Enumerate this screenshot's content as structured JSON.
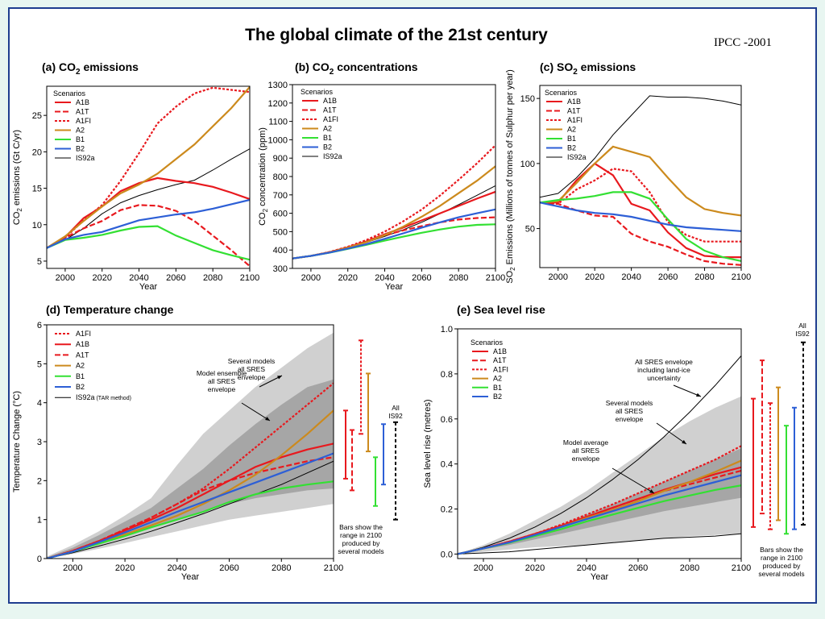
{
  "page": {
    "title": "The global climate of the 21st century",
    "source": "IPCC -2001"
  },
  "colors": {
    "A1B": "#e8191e",
    "A1T": "#e8191e",
    "A1FI": "#e8191e",
    "A2": "#cc8a1d",
    "B1": "#33e033",
    "B2": "#2d5fd6",
    "IS92a": "#000000",
    "env_light": "#d0d0d0",
    "env_dark": "#a6a6a6",
    "frame": "#1f3d8f",
    "background": "#e8f6f1"
  },
  "chart_data": [
    {
      "id": "co2e",
      "type": "line",
      "title_main": "(a) CO",
      "title_sub": "2",
      "title_rest": " emissions",
      "xlabel": "Year",
      "ylabel_main": "CO",
      "ylabel_sub": "2",
      "ylabel_rest": " emissions (Gt C/yr)",
      "xlim": [
        1990,
        2100
      ],
      "ylim": [
        4,
        29
      ],
      "xticks": [
        2000,
        2020,
        2040,
        2060,
        2080,
        2100
      ],
      "yticks": [
        5,
        10,
        15,
        20,
        25
      ],
      "legend_title": "Scenarios",
      "legend": [
        "A1B",
        "A1T",
        "A1FI",
        "A2",
        "B1",
        "B2",
        "IS92a"
      ],
      "x": [
        1990,
        2000,
        2010,
        2020,
        2030,
        2040,
        2050,
        2060,
        2070,
        2080,
        2090,
        2100
      ],
      "series": [
        {
          "name": "A1B",
          "values": [
            6.8,
            8.3,
            10.9,
            12.5,
            14.6,
            15.7,
            16.4,
            16.0,
            15.7,
            15.2,
            14.4,
            13.5
          ]
        },
        {
          "name": "A1T",
          "values": [
            6.8,
            8.2,
            9.5,
            10.5,
            12.0,
            12.7,
            12.6,
            11.9,
            10.5,
            8.5,
            6.5,
            4.3
          ]
        },
        {
          "name": "A1FI",
          "values": [
            6.8,
            8.2,
            10.6,
            12.7,
            16.0,
            19.8,
            23.9,
            26.2,
            28.0,
            28.8,
            28.5,
            28.2
          ]
        },
        {
          "name": "A2",
          "values": [
            6.8,
            8.4,
            10.5,
            12.5,
            14.3,
            15.5,
            17.0,
            19.0,
            21.0,
            23.5,
            26.0,
            28.9
          ]
        },
        {
          "name": "B1",
          "values": [
            6.8,
            7.9,
            8.2,
            8.6,
            9.2,
            9.7,
            9.8,
            8.5,
            7.5,
            6.5,
            5.8,
            5.2
          ]
        },
        {
          "name": "B2",
          "values": [
            6.8,
            8.0,
            8.6,
            9.0,
            9.8,
            10.6,
            11.0,
            11.4,
            11.7,
            12.2,
            12.8,
            13.4
          ]
        },
        {
          "name": "IS92a",
          "values": [
            6.8,
            7.9,
            9.5,
            11.5,
            13.0,
            14.0,
            14.8,
            15.5,
            16.1,
            17.5,
            19.0,
            20.4
          ]
        }
      ]
    },
    {
      "id": "co2c",
      "type": "line",
      "title_main": "(b) CO",
      "title_sub": "2",
      "title_rest": " concentrations",
      "xlabel": "Year",
      "ylabel_main": "CO",
      "ylabel_sub": "2",
      "ylabel_rest": " concentration (ppm)",
      "xlim": [
        1990,
        2100
      ],
      "ylim": [
        300,
        1300
      ],
      "xticks": [
        2000,
        2020,
        2040,
        2060,
        2080,
        2100
      ],
      "yticks": [
        300,
        400,
        500,
        600,
        700,
        800,
        900,
        1000,
        1100,
        1200,
        1300
      ],
      "legend_title": "Scenarios",
      "legend": [
        "A1B",
        "A1T",
        "A1FI",
        "A2",
        "B1",
        "B2",
        "IS92a"
      ],
      "x": [
        1990,
        2000,
        2010,
        2020,
        2030,
        2040,
        2050,
        2060,
        2070,
        2080,
        2090,
        2100
      ],
      "series": [
        {
          "name": "A1B",
          "values": [
            354,
            368,
            388,
            415,
            447,
            486,
            522,
            561,
            600,
            640,
            680,
            717
          ]
        },
        {
          "name": "A1T",
          "values": [
            354,
            368,
            388,
            414,
            444,
            480,
            507,
            530,
            551,
            566,
            574,
            578
          ]
        },
        {
          "name": "A1FI",
          "values": [
            354,
            368,
            389,
            418,
            454,
            500,
            556,
            620,
            697,
            782,
            872,
            970
          ]
        },
        {
          "name": "A2",
          "values": [
            354,
            368,
            387,
            413,
            443,
            481,
            527,
            581,
            641,
            709,
            777,
            856
          ]
        },
        {
          "name": "B1",
          "values": [
            354,
            368,
            385,
            406,
            428,
            451,
            473,
            494,
            512,
            527,
            537,
            540
          ]
        },
        {
          "name": "B2",
          "values": [
            354,
            368,
            386,
            408,
            432,
            461,
            491,
            522,
            551,
            578,
            600,
            621
          ]
        },
        {
          "name": "IS92a",
          "values": [
            354,
            368,
            387,
            412,
            441,
            474,
            510,
            551,
            598,
            647,
            698,
            750
          ]
        }
      ]
    },
    {
      "id": "so2",
      "type": "line",
      "title_main": "(c) SO",
      "title_sub": "2",
      "title_rest": " emissions",
      "xlabel": "",
      "ylabel_main": "SO",
      "ylabel_sub": "2",
      "ylabel_rest": " Emissions (Millions of tonnes of Sulphur per year)",
      "xlim": [
        1990,
        2100
      ],
      "ylim": [
        20,
        160
      ],
      "xticks": [
        2000,
        2020,
        2040,
        2060,
        2080,
        2100
      ],
      "yticks": [
        50,
        100,
        150
      ],
      "legend_title": "Scenarios",
      "legend": [
        "A1B",
        "A1T",
        "A1FI",
        "A2",
        "B1",
        "B2",
        "IS92a"
      ],
      "x": [
        1990,
        2000,
        2010,
        2020,
        2030,
        2040,
        2050,
        2060,
        2070,
        2080,
        2090,
        2100
      ],
      "series": [
        {
          "name": "A1B",
          "values": [
            70,
            70,
            87,
            100,
            91,
            69,
            64,
            47,
            35,
            29,
            28,
            28
          ]
        },
        {
          "name": "A1T",
          "values": [
            70,
            69,
            64,
            60,
            59,
            46,
            40,
            36,
            30,
            25,
            23,
            22
          ]
        },
        {
          "name": "A1FI",
          "values": [
            70,
            69,
            80,
            87,
            96,
            94,
            78,
            55,
            45,
            40,
            40,
            40
          ]
        },
        {
          "name": "A2",
          "values": [
            70,
            71,
            85,
            100,
            113,
            109,
            105,
            89,
            74,
            65,
            62,
            60
          ]
        },
        {
          "name": "B1",
          "values": [
            70,
            72,
            73,
            75,
            78,
            78,
            73,
            57,
            42,
            33,
            28,
            25
          ]
        },
        {
          "name": "B2",
          "values": [
            70,
            67,
            64,
            62,
            61,
            59,
            56,
            53,
            51,
            50,
            49,
            48
          ]
        },
        {
          "name": "IS92a",
          "values": [
            74,
            77,
            89,
            104,
            122,
            137,
            152,
            151,
            151,
            150,
            148,
            145
          ]
        }
      ]
    },
    {
      "id": "temp",
      "type": "line",
      "title": "(d) Temperature change",
      "xlabel": "Year",
      "ylabel": "Temperature Change (°C)",
      "xlim": [
        1990,
        2100
      ],
      "ylim": [
        0,
        6
      ],
      "xticks": [
        2000,
        2020,
        2040,
        2060,
        2080,
        2100
      ],
      "yticks": [
        0,
        1,
        2,
        3,
        4,
        5,
        6
      ],
      "legend": [
        "A1FI",
        "A1B",
        "A1T",
        "A2",
        "B1",
        "B2",
        "IS92a"
      ],
      "legend_suffix_last": " (TAR method)",
      "x": [
        1990,
        2000,
        2010,
        2020,
        2030,
        2040,
        2050,
        2060,
        2070,
        2080,
        2090,
        2100
      ],
      "envelope_outer": {
        "upper": [
          0.05,
          0.35,
          0.7,
          1.1,
          1.55,
          2.4,
          3.2,
          3.8,
          4.4,
          4.9,
          5.4,
          5.8
        ],
        "lower": [
          0.0,
          0.12,
          0.25,
          0.4,
          0.55,
          0.7,
          0.85,
          1.0,
          1.1,
          1.2,
          1.3,
          1.4
        ]
      },
      "envelope_inner": {
        "upper": [
          0.03,
          0.28,
          0.6,
          0.95,
          1.3,
          1.8,
          2.3,
          2.9,
          3.45,
          3.95,
          4.4,
          4.6
        ],
        "lower": [
          0.0,
          0.18,
          0.38,
          0.6,
          0.8,
          1.0,
          1.2,
          1.4,
          1.55,
          1.65,
          1.75,
          1.8
        ]
      },
      "series": [
        {
          "name": "A1FI",
          "values": [
            0.0,
            0.2,
            0.45,
            0.75,
            1.05,
            1.4,
            1.8,
            2.3,
            2.85,
            3.4,
            3.95,
            4.5
          ]
        },
        {
          "name": "A1B",
          "values": [
            0.0,
            0.2,
            0.45,
            0.72,
            1.0,
            1.3,
            1.65,
            2.0,
            2.35,
            2.6,
            2.8,
            2.95
          ]
        },
        {
          "name": "A1T",
          "values": [
            0.0,
            0.2,
            0.45,
            0.75,
            1.05,
            1.4,
            1.75,
            2.0,
            2.2,
            2.35,
            2.5,
            2.6
          ]
        },
        {
          "name": "A2",
          "values": [
            0.0,
            0.18,
            0.4,
            0.62,
            0.85,
            1.1,
            1.4,
            1.75,
            2.15,
            2.65,
            3.2,
            3.8
          ]
        },
        {
          "name": "B1",
          "values": [
            0.0,
            0.18,
            0.38,
            0.58,
            0.8,
            1.0,
            1.2,
            1.45,
            1.65,
            1.8,
            1.9,
            1.98
          ]
        },
        {
          "name": "B2",
          "values": [
            0.0,
            0.18,
            0.42,
            0.67,
            0.93,
            1.2,
            1.45,
            1.7,
            1.95,
            2.2,
            2.45,
            2.7
          ]
        },
        {
          "name": "IS92a",
          "values": [
            0.0,
            0.15,
            0.32,
            0.5,
            0.7,
            0.92,
            1.15,
            1.4,
            1.65,
            1.9,
            2.2,
            2.5
          ]
        }
      ],
      "range_bars": [
        {
          "name": "A1B",
          "low": 2.05,
          "high": 3.8
        },
        {
          "name": "A1T",
          "low": 1.75,
          "high": 3.3
        },
        {
          "name": "A1FI",
          "low": 3.2,
          "high": 5.6
        },
        {
          "name": "A2",
          "low": 2.75,
          "high": 4.75
        },
        {
          "name": "B1",
          "low": 1.35,
          "high": 2.6
        },
        {
          "name": "B2",
          "low": 1.9,
          "high": 3.45
        },
        {
          "name": "IS92a",
          "low": 1.0,
          "high": 3.5
        }
      ],
      "annotations": {
        "outer": [
          "Several models",
          "all SRES",
          "envelope"
        ],
        "inner": [
          "Model ensemble",
          "all SRES",
          "envelope"
        ],
        "bars_note": [
          "Bars show the",
          "range in 2100",
          "produced by",
          "several models"
        ],
        "all_is92": [
          "All",
          "IS92"
        ]
      }
    },
    {
      "id": "sea",
      "type": "line",
      "title": "(e) Sea level rise",
      "xlabel": "Year",
      "ylabel": "Sea level rise (metres)",
      "xlim": [
        1990,
        2100
      ],
      "ylim": [
        -0.02,
        1.0
      ],
      "xticks": [
        2000,
        2020,
        2040,
        2060,
        2080,
        2100
      ],
      "yticks": [
        0.0,
        0.2,
        0.4,
        0.6,
        0.8,
        1.0
      ],
      "ytick_labels": [
        "0.0",
        "0.2",
        "0.4",
        "0.6",
        "0.8",
        "1.0"
      ],
      "legend_title": "Scenarios",
      "legend": [
        "A1B",
        "A1T",
        "A1FI",
        "A2",
        "B1",
        "B2"
      ],
      "x": [
        1990,
        2000,
        2010,
        2020,
        2030,
        2040,
        2050,
        2060,
        2070,
        2080,
        2090,
        2100
      ],
      "envelope_outer": {
        "upper": [
          0.0,
          0.04,
          0.09,
          0.15,
          0.21,
          0.28,
          0.36,
          0.44,
          0.52,
          0.59,
          0.65,
          0.7
        ],
        "lower": [
          0.0,
          0.01,
          0.02,
          0.03,
          0.035,
          0.04,
          0.05,
          0.06,
          0.07,
          0.08,
          0.085,
          0.09
        ]
      },
      "envelope_inner": {
        "upper": [
          0.0,
          0.025,
          0.055,
          0.09,
          0.13,
          0.175,
          0.22,
          0.27,
          0.32,
          0.37,
          0.42,
          0.47
        ],
        "lower": [
          0.0,
          0.02,
          0.04,
          0.065,
          0.09,
          0.115,
          0.14,
          0.165,
          0.19,
          0.21,
          0.23,
          0.25
        ]
      },
      "series": [
        {
          "name": "A1B",
          "values": [
            0.0,
            0.025,
            0.055,
            0.09,
            0.125,
            0.165,
            0.205,
            0.245,
            0.285,
            0.32,
            0.355,
            0.385
          ]
        },
        {
          "name": "A1T",
          "values": [
            0.0,
            0.025,
            0.055,
            0.09,
            0.125,
            0.165,
            0.205,
            0.245,
            0.28,
            0.31,
            0.34,
            0.37
          ]
        },
        {
          "name": "A1FI",
          "values": [
            0.0,
            0.025,
            0.055,
            0.09,
            0.13,
            0.175,
            0.22,
            0.27,
            0.32,
            0.37,
            0.42,
            0.48
          ]
        },
        {
          "name": "A2",
          "values": [
            0.0,
            0.025,
            0.05,
            0.085,
            0.12,
            0.16,
            0.195,
            0.235,
            0.28,
            0.32,
            0.365,
            0.415
          ]
        },
        {
          "name": "B1",
          "values": [
            0.0,
            0.025,
            0.05,
            0.08,
            0.11,
            0.145,
            0.175,
            0.205,
            0.235,
            0.26,
            0.285,
            0.305
          ]
        },
        {
          "name": "B2",
          "values": [
            0.0,
            0.025,
            0.052,
            0.085,
            0.12,
            0.155,
            0.19,
            0.225,
            0.26,
            0.29,
            0.32,
            0.35
          ]
        }
      ],
      "is92_lines": [
        {
          "name": "upper",
          "values": [
            0.0,
            0.03,
            0.07,
            0.12,
            0.18,
            0.25,
            0.33,
            0.42,
            0.52,
            0.63,
            0.75,
            0.88
          ]
        },
        {
          "name": "lower",
          "values": [
            0.0,
            0.005,
            0.01,
            0.02,
            0.03,
            0.04,
            0.05,
            0.06,
            0.07,
            0.075,
            0.08,
            0.09
          ]
        }
      ],
      "range_bars": [
        {
          "name": "A1B",
          "low": 0.12,
          "high": 0.69
        },
        {
          "name": "A1T",
          "low": 0.18,
          "high": 0.86
        },
        {
          "name": "A1FI",
          "low": 0.11,
          "high": 0.67
        },
        {
          "name": "A2",
          "low": 0.15,
          "high": 0.74
        },
        {
          "name": "B1",
          "low": 0.09,
          "high": 0.57
        },
        {
          "name": "B2",
          "low": 0.11,
          "high": 0.65
        },
        {
          "name": "IS92a",
          "low": 0.13,
          "high": 0.94
        }
      ],
      "annotations": {
        "top": [
          "All SRES envelope",
          "including land-ice",
          "uncertainty"
        ],
        "mid": [
          "Several models",
          "all SRES",
          "envelope"
        ],
        "low": [
          "Model average",
          "all SRES",
          "envelope"
        ],
        "bars_note": [
          "Bars show the",
          "range in 2100",
          "produced by",
          "several models"
        ],
        "all_is92": [
          "All",
          "IS92"
        ]
      }
    }
  ]
}
